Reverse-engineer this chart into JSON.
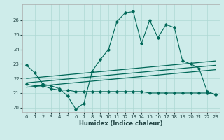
{
  "x": [
    0,
    1,
    2,
    3,
    4,
    5,
    6,
    7,
    8,
    9,
    10,
    11,
    12,
    13,
    14,
    15,
    16,
    17,
    18,
    19,
    20,
    21,
    22,
    23
  ],
  "line_jagged": [
    22.9,
    22.4,
    21.6,
    21.5,
    21.3,
    20.8,
    19.9,
    20.3,
    22.5,
    23.3,
    24.0,
    25.9,
    26.5,
    26.6,
    24.4,
    26.0,
    24.8,
    25.7,
    25.5,
    23.2,
    23.0,
    22.7,
    21.1,
    20.9
  ],
  "line_flat": [
    21.6,
    21.5,
    21.5,
    21.3,
    21.2,
    21.2,
    21.1,
    21.1,
    21.1,
    21.1,
    21.1,
    21.1,
    21.1,
    21.1,
    21.1,
    21.0,
    21.0,
    21.0,
    21.0,
    21.0,
    21.0,
    21.0,
    21.0,
    20.9
  ],
  "trend1_x": [
    0,
    23
  ],
  "trend1_y": [
    22.0,
    23.2
  ],
  "trend2_x": [
    0,
    23
  ],
  "trend2_y": [
    21.7,
    22.9
  ],
  "trend3_x": [
    0,
    23
  ],
  "trend3_y": [
    21.4,
    22.6
  ],
  "bg_color": "#ceecea",
  "grid_color": "#aed8d4",
  "line_color": "#006858",
  "xlabel": "Humidex (Indice chaleur)",
  "xlim": [
    -0.5,
    23.5
  ],
  "ylim": [
    19.7,
    27.1
  ],
  "yticks": [
    20,
    21,
    22,
    23,
    24,
    25,
    26
  ],
  "xticks": [
    0,
    1,
    2,
    3,
    4,
    5,
    6,
    7,
    8,
    9,
    10,
    11,
    12,
    13,
    14,
    15,
    16,
    17,
    18,
    19,
    20,
    21,
    22,
    23
  ]
}
